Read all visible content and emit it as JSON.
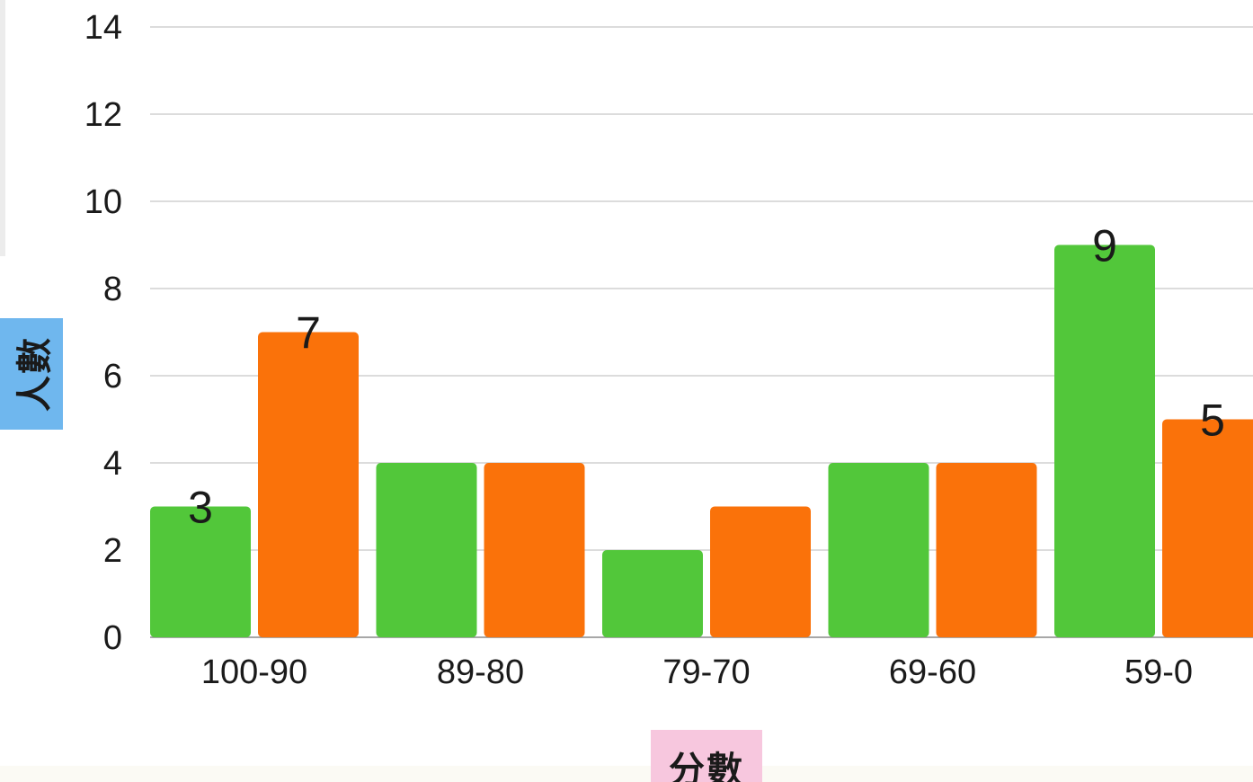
{
  "chart_data": {
    "type": "bar",
    "categories": [
      "100-90",
      "89-80",
      "79-70",
      "69-60",
      "59-0"
    ],
    "series": [
      {
        "color": "#52c73a",
        "values": [
          3,
          4,
          2,
          4,
          9
        ]
      },
      {
        "color": "#fa720a",
        "values": [
          7,
          4,
          3,
          4,
          5
        ]
      }
    ],
    "data_labels": [
      {
        "series": 0,
        "category": 0,
        "text": "3"
      },
      {
        "series": 1,
        "category": 0,
        "text": "7"
      },
      {
        "series": 0,
        "category": 4,
        "text": "9"
      },
      {
        "series": 1,
        "category": 4,
        "text": "5"
      }
    ],
    "ylim": [
      0,
      14
    ],
    "yticks": [
      0,
      2,
      4,
      6,
      8,
      10,
      12,
      14
    ],
    "xlabel": "分數",
    "ylabel": "人數",
    "grid": true,
    "legend": "none"
  }
}
